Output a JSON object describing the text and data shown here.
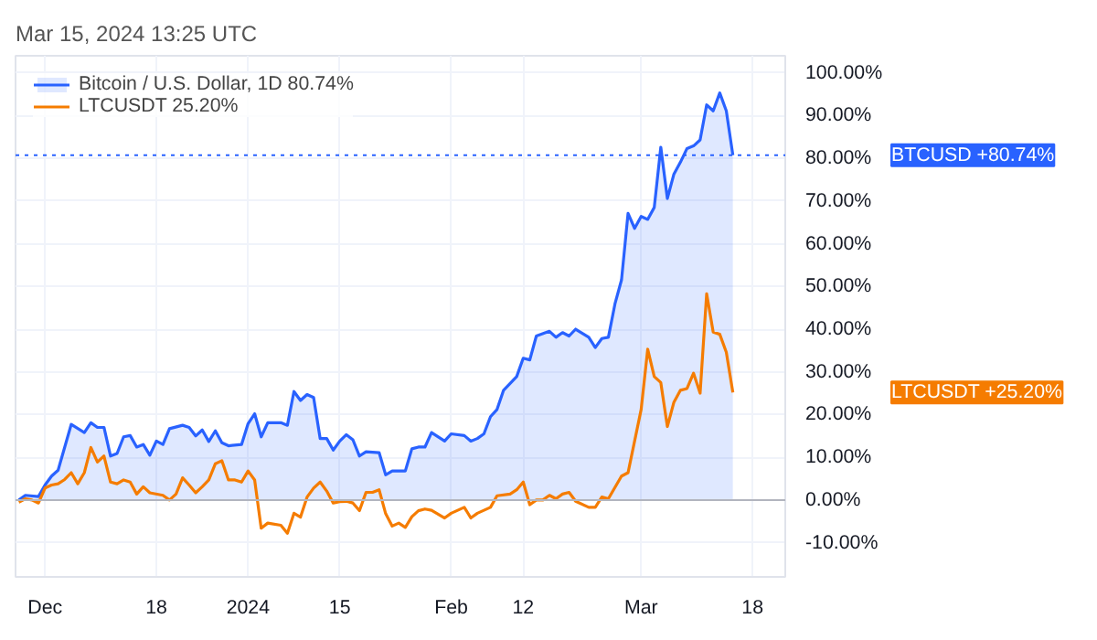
{
  "chart_data": {
    "type": "line",
    "title": "Mar 15, 2024 13:25 UTC",
    "xlim": [
      "2023-11-26T12:00",
      "2024-03-23"
    ],
    "ylim": [
      -18,
      104
    ],
    "xticks": [
      {
        "value": "2023-12-01",
        "label": "Dec"
      },
      {
        "value": "2023-12-18",
        "label": "18"
      },
      {
        "value": "2024-01-01",
        "label": "2024"
      },
      {
        "value": "2024-01-15",
        "label": "15"
      },
      {
        "value": "2024-02-01",
        "label": "Feb"
      },
      {
        "value": "2024-02-12",
        "label": "12"
      },
      {
        "value": "2024-03-01",
        "label": "Mar"
      },
      {
        "value": "2024-03-18",
        "label": "18"
      }
    ],
    "yticks": [
      {
        "value": -10,
        "label": "-10.00%"
      },
      {
        "value": 0,
        "label": "0.00%"
      },
      {
        "value": 10,
        "label": "10.00%"
      },
      {
        "value": 20,
        "label": "20.00%"
      },
      {
        "value": 30,
        "label": "30.00%"
      },
      {
        "value": 40,
        "label": "40.00%"
      },
      {
        "value": 50,
        "label": "50.00%"
      },
      {
        "value": 60,
        "label": "60.00%"
      },
      {
        "value": 70,
        "label": "70.00%"
      },
      {
        "value": 80,
        "label": "80.00%"
      },
      {
        "value": 90,
        "label": "90.00%"
      },
      {
        "value": 100,
        "label": "100.00%"
      }
    ],
    "grid": true,
    "legend": "top left",
    "marker": "none",
    "line_style": "solid",
    "ref_lines": [
      {
        "axis": "y",
        "value": 0,
        "color": "#b2b5be",
        "line_style": "solid"
      },
      {
        "axis": "y",
        "value": 80.74,
        "color": "#2962ff",
        "line_style": "dotted"
      }
    ],
    "annotations": [
      "BTCUSD +80.74%",
      "LTCUSDT +25.20%"
    ],
    "series": [
      {
        "name": "Bitcoin / U.S. Dollar, 1D 80.74%",
        "type": "area",
        "color": "#2962ff",
        "x": [
          "2023-11-27",
          "2023-11-28",
          "2023-11-30",
          "2023-12-01",
          "2023-12-02",
          "2023-12-03",
          "2023-12-05",
          "2023-12-07",
          "2023-12-08",
          "2023-12-09",
          "2023-12-10",
          "2023-12-11",
          "2023-12-12",
          "2023-12-13",
          "2023-12-14",
          "2023-12-15",
          "2023-12-16",
          "2023-12-17",
          "2023-12-18",
          "2023-12-19",
          "2023-12-20",
          "2023-12-22",
          "2023-12-23",
          "2023-12-24",
          "2023-12-25",
          "2023-12-26",
          "2023-12-27",
          "2023-12-28",
          "2023-12-29",
          "2023-12-31",
          "2024-01-01",
          "2024-01-02",
          "2024-01-03",
          "2024-01-04",
          "2024-01-06",
          "2024-01-07",
          "2024-01-08",
          "2024-01-09",
          "2024-01-10",
          "2024-01-11",
          "2024-01-12",
          "2024-01-13",
          "2024-01-14",
          "2024-01-15",
          "2024-01-16",
          "2024-01-17",
          "2024-01-18",
          "2024-01-19",
          "2024-01-21",
          "2024-01-22",
          "2024-01-23",
          "2024-01-25",
          "2024-01-26",
          "2024-01-27",
          "2024-01-28",
          "2024-01-29",
          "2024-01-31",
          "2024-02-01",
          "2024-02-03",
          "2024-02-04",
          "2024-02-05",
          "2024-02-06",
          "2024-02-07",
          "2024-02-08",
          "2024-02-09",
          "2024-02-11",
          "2024-02-12",
          "2024-02-13",
          "2024-02-14",
          "2024-02-16",
          "2024-02-17",
          "2024-02-18",
          "2024-02-19",
          "2024-02-20",
          "2024-02-22",
          "2024-02-23",
          "2024-02-24",
          "2024-02-25",
          "2024-02-26",
          "2024-02-27",
          "2024-02-28",
          "2024-02-29",
          "2024-03-01",
          "2024-03-02",
          "2024-03-03",
          "2024-03-04",
          "2024-03-05",
          "2024-03-06",
          "2024-03-07",
          "2024-03-08",
          "2024-03-09",
          "2024-03-10",
          "2024-03-11",
          "2024-03-12",
          "2024-03-13",
          "2024-03-14",
          "2024-03-15"
        ],
        "values": [
          0,
          1.1,
          0.8,
          3.5,
          5.6,
          7,
          17.7,
          15.8,
          18.1,
          17,
          17,
          10.3,
          10.9,
          14.8,
          15.1,
          12.4,
          13,
          10.5,
          13.8,
          13,
          16.7,
          17.5,
          17,
          15,
          16.4,
          13.7,
          16.2,
          13.4,
          12.7,
          13,
          17.9,
          20.2,
          14.8,
          18.1,
          18.1,
          17.5,
          25.4,
          23.3,
          24.7,
          24,
          14.4,
          14.4,
          11.7,
          13.8,
          15.3,
          14.1,
          10.3,
          11.3,
          11.1,
          5.9,
          6.8,
          6.8,
          12,
          12.4,
          12.4,
          15.8,
          13.8,
          15.5,
          15.1,
          13.8,
          14.4,
          15.5,
          19.5,
          21.2,
          25.7,
          28.9,
          33.2,
          32.8,
          38.4,
          39.5,
          38.1,
          39.2,
          38.4,
          40,
          38.1,
          35.7,
          37.8,
          38.1,
          45.9,
          51.5,
          67.1,
          63.6,
          66.4,
          65.7,
          68.5,
          82.6,
          70.6,
          76.3,
          79.1,
          82.3,
          82.9,
          84.3,
          92.5,
          91.1,
          95.3,
          91.1,
          80.74
        ]
      },
      {
        "name": "LTCUSDT 25.20%",
        "color": "#f57c00",
        "x": [
          "2023-11-27",
          "2023-11-28",
          "2023-11-29",
          "2023-11-30",
          "2023-12-01",
          "2023-12-02",
          "2023-12-03",
          "2023-12-04",
          "2023-12-05",
          "2023-12-06",
          "2023-12-07",
          "2023-12-08",
          "2023-12-09",
          "2023-12-10",
          "2023-12-11",
          "2023-12-12",
          "2023-12-13",
          "2023-12-14",
          "2023-12-15",
          "2023-12-16",
          "2023-12-17",
          "2023-12-19",
          "2023-12-20",
          "2023-12-21",
          "2023-12-22",
          "2023-12-23",
          "2023-12-24",
          "2023-12-25",
          "2023-12-26",
          "2023-12-27",
          "2023-12-28",
          "2023-12-29",
          "2023-12-30",
          "2023-12-31",
          "2024-01-01",
          "2024-01-02",
          "2024-01-03",
          "2024-01-04",
          "2024-01-06",
          "2024-01-07",
          "2024-01-08",
          "2024-01-09",
          "2024-01-10",
          "2024-01-11",
          "2024-01-12",
          "2024-01-13",
          "2024-01-14",
          "2024-01-15",
          "2024-01-16",
          "2024-01-17",
          "2024-01-18",
          "2024-01-19",
          "2024-01-20",
          "2024-01-21",
          "2024-01-22",
          "2024-01-23",
          "2024-01-24",
          "2024-01-25",
          "2024-01-26",
          "2024-01-27",
          "2024-01-28",
          "2024-01-29",
          "2024-01-31",
          "2024-02-01",
          "2024-02-03",
          "2024-02-04",
          "2024-02-05",
          "2024-02-07",
          "2024-02-08",
          "2024-02-10",
          "2024-02-11",
          "2024-02-12",
          "2024-02-13",
          "2024-02-14",
          "2024-02-15",
          "2024-02-16",
          "2024-02-17",
          "2024-02-18",
          "2024-02-19",
          "2024-02-20",
          "2024-02-22",
          "2024-02-23",
          "2024-02-24",
          "2024-02-25",
          "2024-02-27",
          "2024-02-28",
          "2024-03-01",
          "2024-03-02",
          "2024-03-03",
          "2024-03-04",
          "2024-03-05",
          "2024-03-06",
          "2024-03-07",
          "2024-03-08",
          "2024-03-09",
          "2024-03-10",
          "2024-03-11",
          "2024-03-12",
          "2024-03-13",
          "2024-03-14",
          "2024-03-15"
        ],
        "values": [
          -0.5,
          0.3,
          0,
          -0.7,
          2.8,
          3.5,
          3.8,
          4.8,
          6.4,
          3.8,
          6.4,
          12.3,
          8.9,
          10.3,
          4.2,
          3.8,
          4.7,
          4.2,
          1.4,
          3.1,
          1.7,
          1.1,
          0,
          1.4,
          5.2,
          3.5,
          1.7,
          3.1,
          4.7,
          8.5,
          9.2,
          4.7,
          4.7,
          4.2,
          6.8,
          4.7,
          -6.6,
          -5.4,
          -5.9,
          -7.8,
          -3.1,
          -4,
          0.7,
          2.8,
          4.2,
          2.1,
          -0.7,
          -0.4,
          -0.3,
          -0.7,
          -2.5,
          1.8,
          1.8,
          2.4,
          -3.2,
          -6.1,
          -5.4,
          -6.4,
          -3.9,
          -2.5,
          -2.1,
          -2.4,
          -4.2,
          -3.1,
          -1.7,
          -4.2,
          -3.1,
          -1.7,
          1,
          1.4,
          2.4,
          4.2,
          -1.1,
          0,
          0,
          1.1,
          0.3,
          1.4,
          1.8,
          -0.3,
          -1.7,
          -1.7,
          0.7,
          0.3,
          5.6,
          6.4,
          21.2,
          35.3,
          28.9,
          27.5,
          17.2,
          22.9,
          25.7,
          26.1,
          29.7,
          25,
          48.3,
          39.3,
          38.8,
          34.6,
          25.2
        ]
      }
    ]
  }
}
